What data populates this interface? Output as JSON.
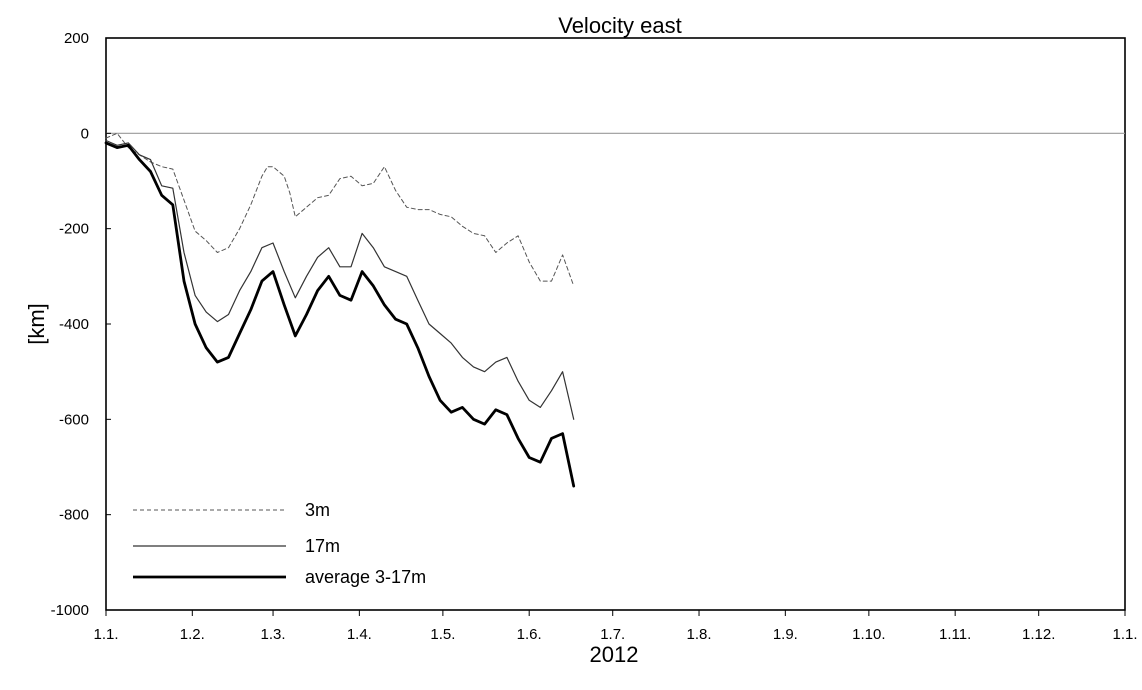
{
  "chart_data": {
    "type": "line",
    "title": "Velocity east",
    "xlabel": "2012",
    "ylabel": "[km]",
    "ylim": [
      -1000,
      200
    ],
    "xlim": [
      0,
      366
    ],
    "yticks": [
      200,
      0,
      -200,
      -400,
      -600,
      -800,
      -1000
    ],
    "ytick_labels": [
      "200",
      "0",
      "-200",
      "-400",
      "-600",
      "-800",
      "-1000"
    ],
    "xticks": [
      0,
      31,
      60,
      91,
      121,
      152,
      182,
      213,
      244,
      274,
      305,
      335,
      366
    ],
    "xtick_labels": [
      "1.1.",
      "1.2.",
      "1.3.",
      "1.4.",
      "1.5.",
      "1.6.",
      "1.7.",
      "1.8.",
      "1.9.",
      "1.10.",
      "1.11.",
      "1.12.",
      "1.1."
    ],
    "zero_line": true,
    "grid": false,
    "legend_position": "bottom-left",
    "series": [
      {
        "name": "3m",
        "style": "dashed",
        "color": "#555555",
        "x": [
          0,
          4,
          8,
          12,
          16,
          20,
          24,
          28,
          32,
          36,
          40,
          44,
          48,
          52,
          56,
          58,
          60,
          64,
          66,
          68,
          72,
          76,
          80,
          84,
          88,
          92,
          96,
          100,
          104,
          108,
          112,
          116,
          120,
          124,
          128,
          132,
          136,
          140,
          144,
          148,
          152,
          156,
          160,
          164,
          168
        ],
        "y": [
          -10,
          0,
          -30,
          -45,
          -60,
          -70,
          -75,
          -140,
          -205,
          -225,
          -250,
          -240,
          -200,
          -150,
          -90,
          -70,
          -70,
          -90,
          -125,
          -175,
          -155,
          -135,
          -130,
          -95,
          -90,
          -110,
          -105,
          -70,
          -120,
          -155,
          -160,
          -160,
          -170,
          -175,
          -195,
          -210,
          -215,
          -250,
          -230,
          -215,
          -270,
          -310,
          -310,
          -255,
          -320
        ]
      },
      {
        "name": "17m",
        "style": "solid",
        "color": "#333333",
        "x": [
          0,
          4,
          8,
          12,
          16,
          20,
          24,
          28,
          32,
          36,
          40,
          44,
          48,
          52,
          56,
          60,
          64,
          68,
          72,
          76,
          80,
          84,
          88,
          92,
          96,
          100,
          104,
          108,
          112,
          116,
          120,
          124,
          128,
          132,
          136,
          140,
          144,
          148,
          152,
          156,
          160,
          164,
          168
        ],
        "y": [
          -15,
          -25,
          -20,
          -45,
          -55,
          -110,
          -115,
          -250,
          -340,
          -375,
          -395,
          -380,
          -330,
          -290,
          -240,
          -230,
          -290,
          -345,
          -300,
          -260,
          -240,
          -280,
          -280,
          -210,
          -240,
          -280,
          -290,
          -300,
          -350,
          -400,
          -420,
          -440,
          -470,
          -490,
          -500,
          -480,
          -470,
          -520,
          -560,
          -575,
          -540,
          -500,
          -600
        ]
      },
      {
        "name": "average 3-17m",
        "style": "thick",
        "color": "#000000",
        "x": [
          0,
          4,
          8,
          12,
          16,
          20,
          24,
          28,
          32,
          36,
          40,
          44,
          48,
          52,
          56,
          60,
          64,
          68,
          72,
          76,
          80,
          84,
          88,
          92,
          96,
          100,
          104,
          108,
          112,
          116,
          120,
          124,
          128,
          132,
          136,
          140,
          144,
          148,
          152,
          156,
          160,
          164,
          168
        ],
        "y": [
          -20,
          -30,
          -25,
          -55,
          -80,
          -130,
          -150,
          -310,
          -400,
          -450,
          -480,
          -470,
          -420,
          -370,
          -310,
          -290,
          -360,
          -425,
          -380,
          -330,
          -300,
          -340,
          -350,
          -290,
          -320,
          -360,
          -390,
          -400,
          -450,
          -510,
          -560,
          -585,
          -575,
          -600,
          -610,
          -580,
          -590,
          -640,
          -680,
          -690,
          -640,
          -630,
          -740
        ]
      }
    ]
  }
}
